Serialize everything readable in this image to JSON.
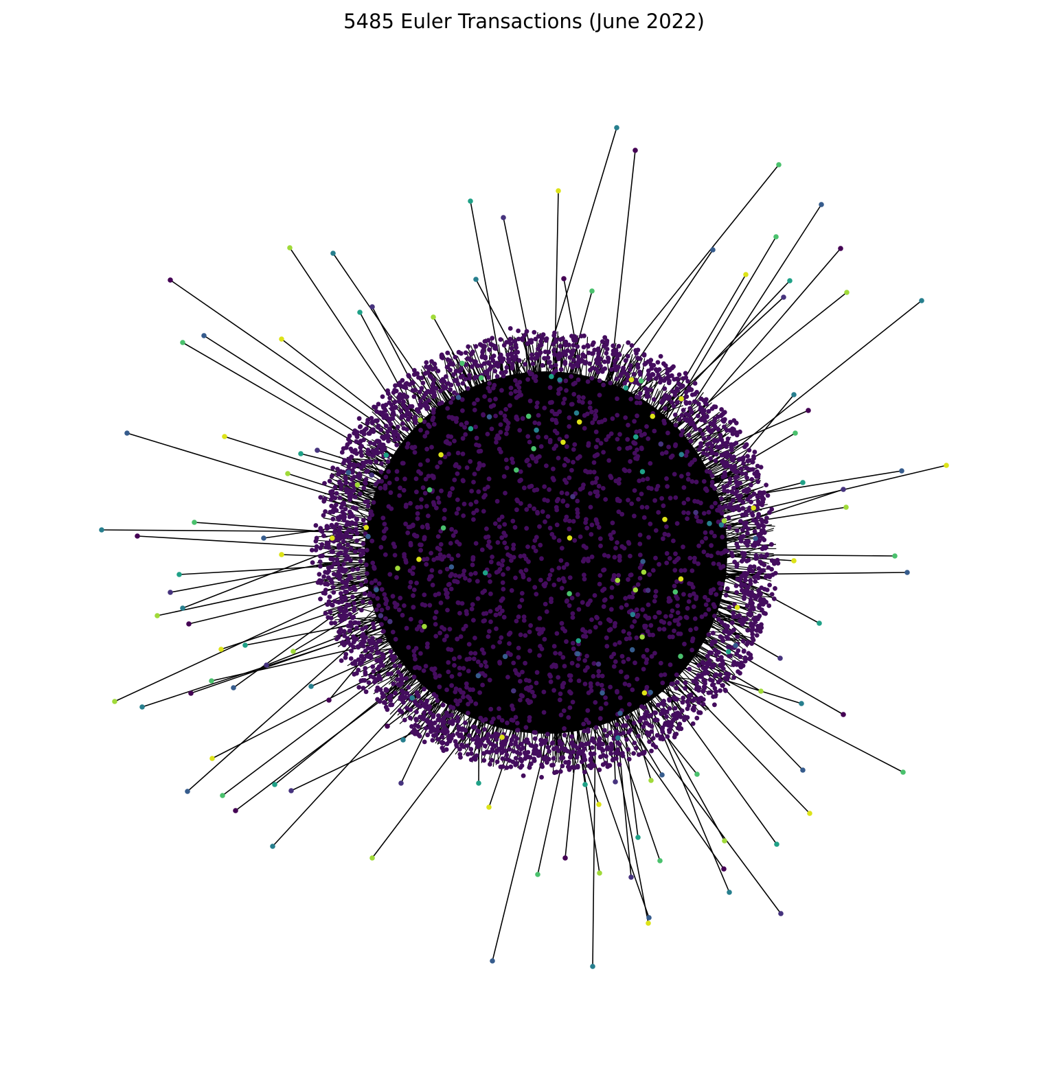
{
  "figure": {
    "title": "5485 Euler Transactions (June 2022)"
  },
  "graph": {
    "node_count": 5485,
    "layout": "force-directed hairball",
    "node_color_scale": "viridis",
    "colors": {
      "background": "#ffffff",
      "edge": "#000000",
      "core_node": "#440d5e",
      "palette": [
        "#440154",
        "#46337e",
        "#365c8d",
        "#277f8e",
        "#1fa187",
        "#4ac16d",
        "#a0da39",
        "#dde318"
      ]
    }
  }
}
